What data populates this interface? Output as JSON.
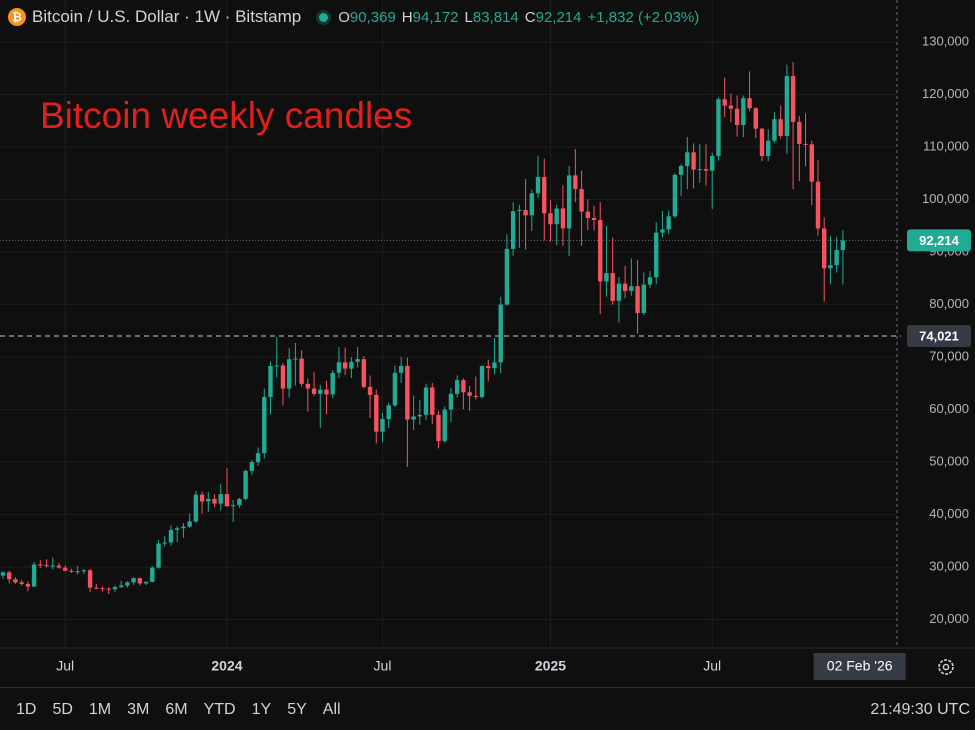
{
  "header": {
    "symbol": "Bitcoin / U.S. Dollar · 1W · Bitstamp",
    "ohlc_legend": [
      {
        "key": "O",
        "value": "90,369"
      },
      {
        "key": "H",
        "value": "94,172"
      },
      {
        "key": "L",
        "value": "83,814"
      },
      {
        "key": "C",
        "value": "92,214"
      }
    ],
    "change": "+1,832 (+2.03%)"
  },
  "chart_data": {
    "type": "candlestick",
    "annotation": "Bitcoin weekly candles",
    "up_color": "#22ab94",
    "down_color": "#f7525f",
    "grid": true,
    "ylim": [
      14600,
      138000
    ],
    "yticks": [
      {
        "value": 20000,
        "label": "20,000"
      },
      {
        "value": 30000,
        "label": "30,000"
      },
      {
        "value": 40000,
        "label": "40,000"
      },
      {
        "value": 50000,
        "label": "50,000"
      },
      {
        "value": 60000,
        "label": "60,000"
      },
      {
        "value": 70000,
        "label": "70,000"
      },
      {
        "value": 80000,
        "label": "80,000"
      },
      {
        "value": 90000,
        "label": "90,000"
      },
      {
        "value": 100000,
        "label": "100,000"
      },
      {
        "value": 110000,
        "label": "110,000"
      },
      {
        "value": 120000,
        "label": "120,000"
      },
      {
        "value": 130000,
        "label": "130,000"
      }
    ],
    "xlim": [
      -0.48,
      143.7
    ],
    "xticks": [
      {
        "value": 10,
        "label": "Jul"
      },
      {
        "value": 36,
        "label": "2024"
      },
      {
        "value": 61,
        "label": "Jul"
      },
      {
        "value": 88,
        "label": "2025"
      },
      {
        "value": 114,
        "label": "Jul"
      }
    ],
    "crosshair_x": {
      "value": 137.7,
      "label": "02 Feb '26"
    },
    "price_lines": [
      {
        "value": 92214,
        "label": "92,214",
        "color": "#22ab94",
        "style": "dotted"
      },
      {
        "value": 74021,
        "label": "74,021",
        "color": "#363a45",
        "style": "dashed"
      }
    ],
    "ohlc": [
      [
        28400,
        29200,
        27800,
        29000
      ],
      [
        29000,
        29300,
        26900,
        27700
      ],
      [
        27700,
        28100,
        26800,
        27100
      ],
      [
        27100,
        27600,
        26500,
        26800
      ],
      [
        26800,
        27300,
        25400,
        26300
      ],
      [
        26300,
        31000,
        26200,
        30500
      ],
      [
        30500,
        31300,
        29800,
        30400
      ],
      [
        30400,
        31500,
        29900,
        30200
      ],
      [
        30200,
        31800,
        29600,
        30300
      ],
      [
        30300,
        30800,
        29700,
        29900
      ],
      [
        29900,
        30300,
        29200,
        29300
      ],
      [
        29300,
        29700,
        28900,
        29100
      ],
      [
        29100,
        30200,
        28600,
        29200
      ],
      [
        29200,
        29600,
        28700,
        29400
      ],
      [
        29400,
        29700,
        25200,
        26100
      ],
      [
        26100,
        26800,
        25800,
        26000
      ],
      [
        26000,
        26300,
        25400,
        25900
      ],
      [
        25900,
        26200,
        24900,
        25800
      ],
      [
        25800,
        26500,
        25200,
        26200
      ],
      [
        26200,
        27400,
        26000,
        26500
      ],
      [
        26500,
        27300,
        26100,
        27100
      ],
      [
        27100,
        28100,
        26600,
        27900
      ],
      [
        27900,
        28000,
        26500,
        26900
      ],
      [
        26900,
        27300,
        26600,
        27200
      ],
      [
        27200,
        30200,
        27100,
        29900
      ],
      [
        29900,
        35200,
        29700,
        34500
      ],
      [
        34500,
        35900,
        33900,
        34700
      ],
      [
        34700,
        37900,
        34100,
        37100
      ],
      [
        37100,
        37800,
        34800,
        37400
      ],
      [
        37400,
        38400,
        35600,
        37700
      ],
      [
        37700,
        40200,
        37500,
        38700
      ],
      [
        38700,
        44500,
        38400,
        43800
      ],
      [
        43800,
        44400,
        40200,
        42500
      ],
      [
        42500,
        44300,
        40500,
        43000
      ],
      [
        43000,
        43900,
        41500,
        42100
      ],
      [
        42100,
        45900,
        40800,
        43900
      ],
      [
        43900,
        48900,
        41500,
        41600
      ],
      [
        41600,
        42800,
        38600,
        41800
      ],
      [
        41800,
        43200,
        41300,
        43000
      ],
      [
        43000,
        48600,
        42700,
        48300
      ],
      [
        48300,
        50400,
        47600,
        50000
      ],
      [
        50000,
        52800,
        49300,
        51700
      ],
      [
        51700,
        64000,
        50700,
        62400
      ],
      [
        62400,
        69200,
        59100,
        68300
      ],
      [
        68300,
        73800,
        66100,
        68400
      ],
      [
        68400,
        68900,
        60800,
        64000
      ],
      [
        64000,
        71700,
        62300,
        69600
      ],
      [
        69600,
        72700,
        64600,
        69700
      ],
      [
        69700,
        71300,
        64400,
        64900
      ],
      [
        64900,
        65900,
        59600,
        64000
      ],
      [
        64000,
        67200,
        62600,
        63000
      ],
      [
        63000,
        64700,
        56500,
        63800
      ],
      [
        63800,
        65500,
        59100,
        62900
      ],
      [
        62900,
        67500,
        62200,
        67000
      ],
      [
        67000,
        71900,
        66000,
        69000
      ],
      [
        69000,
        71800,
        66600,
        67800
      ],
      [
        67800,
        70000,
        66000,
        69100
      ],
      [
        69100,
        71900,
        68000,
        69600
      ],
      [
        69600,
        70200,
        64000,
        64300
      ],
      [
        64300,
        66500,
        58400,
        62800
      ],
      [
        62800,
        63800,
        53500,
        55800
      ],
      [
        55800,
        59400,
        53800,
        58200
      ],
      [
        58200,
        61300,
        56500,
        60800
      ],
      [
        60800,
        68400,
        60500,
        67000
      ],
      [
        67000,
        70000,
        65100,
        68300
      ],
      [
        68300,
        69900,
        49100,
        58100
      ],
      [
        58100,
        62700,
        56100,
        58700
      ],
      [
        58700,
        61800,
        57100,
        59000
      ],
      [
        59000,
        64900,
        58000,
        64200
      ],
      [
        64200,
        65100,
        57200,
        59000
      ],
      [
        59000,
        59800,
        52600,
        54000
      ],
      [
        54000,
        60600,
        53700,
        60000
      ],
      [
        60000,
        64100,
        57600,
        63000
      ],
      [
        63000,
        66500,
        62300,
        65600
      ],
      [
        65600,
        66000,
        60100,
        63300
      ],
      [
        63300,
        64500,
        59800,
        62600
      ],
      [
        62600,
        66300,
        61900,
        62400
      ],
      [
        62400,
        68400,
        62100,
        68300
      ],
      [
        68300,
        69500,
        65400,
        67900
      ],
      [
        67900,
        73600,
        66700,
        69000
      ],
      [
        69000,
        81500,
        66900,
        80000
      ],
      [
        80000,
        93400,
        79800,
        90600
      ],
      [
        90600,
        99500,
        89300,
        97800
      ],
      [
        97800,
        99000,
        90800,
        98000
      ],
      [
        98000,
        103900,
        90500,
        97000
      ],
      [
        97000,
        101900,
        94000,
        101200
      ],
      [
        101200,
        108300,
        100300,
        104300
      ],
      [
        104300,
        107800,
        92200,
        97400
      ],
      [
        97400,
        99900,
        92000,
        95300
      ],
      [
        95300,
        99000,
        91300,
        98300
      ],
      [
        98300,
        102700,
        91200,
        94500
      ],
      [
        94500,
        106400,
        89200,
        104600
      ],
      [
        104600,
        109600,
        99500,
        102000
      ],
      [
        102000,
        105500,
        91200,
        97700
      ],
      [
        97700,
        100000,
        94200,
        96500
      ],
      [
        96500,
        98800,
        94100,
        96100
      ],
      [
        96100,
        99500,
        78200,
        84400
      ],
      [
        84400,
        95000,
        81500,
        86000
      ],
      [
        86000,
        92800,
        80000,
        80700
      ],
      [
        80700,
        85300,
        76600,
        84000
      ],
      [
        84000,
        87400,
        81200,
        82600
      ],
      [
        82600,
        88800,
        81700,
        83500
      ],
      [
        83500,
        88500,
        74500,
        78400
      ],
      [
        78400,
        86100,
        78000,
        83800
      ],
      [
        83800,
        86400,
        83100,
        85200
      ],
      [
        85200,
        95700,
        83900,
        93700
      ],
      [
        93700,
        97800,
        92800,
        94300
      ],
      [
        94300,
        97900,
        93400,
        96800
      ],
      [
        96800,
        105000,
        96500,
        104700
      ],
      [
        104700,
        106700,
        100700,
        106400
      ],
      [
        106400,
        111900,
        102000,
        109000
      ],
      [
        109000,
        110700,
        102100,
        105700
      ],
      [
        105700,
        110600,
        103200,
        105800
      ],
      [
        105800,
        110500,
        102700,
        105500
      ],
      [
        105500,
        108900,
        98200,
        108300
      ],
      [
        108300,
        119500,
        107400,
        119100
      ],
      [
        119100,
        123200,
        115700,
        117900
      ],
      [
        117900,
        120200,
        114700,
        117300
      ],
      [
        117300,
        119800,
        112000,
        114200
      ],
      [
        114200,
        119800,
        111900,
        119300
      ],
      [
        119300,
        124400,
        116800,
        117400
      ],
      [
        117400,
        117600,
        111700,
        113500
      ],
      [
        113500,
        113600,
        107300,
        108300
      ],
      [
        108300,
        113400,
        107300,
        111200
      ],
      [
        111200,
        116700,
        110800,
        115300
      ],
      [
        115300,
        117900,
        111600,
        112100
      ],
      [
        112100,
        125700,
        108700,
        123500
      ],
      [
        123500,
        126200,
        102000,
        114800
      ],
      [
        114800,
        115900,
        103500,
        110600
      ],
      [
        110600,
        116400,
        106300,
        110500
      ],
      [
        110500,
        111200,
        98900,
        103400
      ],
      [
        103400,
        107500,
        93100,
        94500
      ],
      [
        94500,
        96600,
        80600,
        86900
      ],
      [
        86900,
        93100,
        83900,
        87500
      ],
      [
        87500,
        92900,
        86100,
        90382
      ],
      [
        90369,
        94172,
        83814,
        92214
      ]
    ]
  },
  "toolbar": {
    "ranges": [
      "1D",
      "5D",
      "1M",
      "3M",
      "6M",
      "YTD",
      "1Y",
      "5Y",
      "All"
    ],
    "clock": "21:49:30 UTC"
  }
}
